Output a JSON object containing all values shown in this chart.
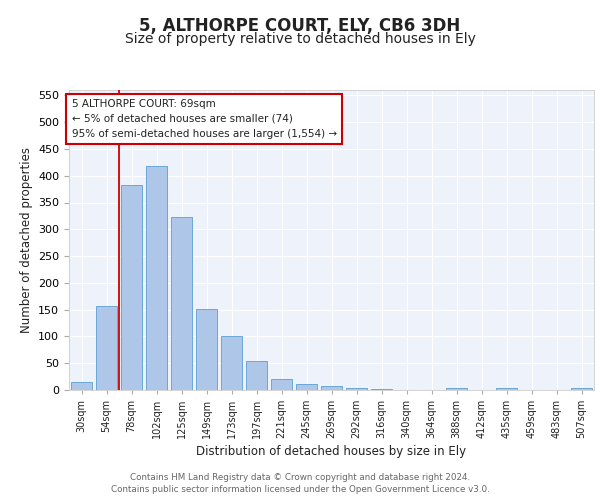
{
  "title": "5, ALTHORPE COURT, ELY, CB6 3DH",
  "subtitle": "Size of property relative to detached houses in Ely",
  "xlabel": "Distribution of detached houses by size in Ely",
  "ylabel": "Number of detached properties",
  "bar_labels": [
    "30sqm",
    "54sqm",
    "78sqm",
    "102sqm",
    "125sqm",
    "149sqm",
    "173sqm",
    "197sqm",
    "221sqm",
    "245sqm",
    "269sqm",
    "292sqm",
    "316sqm",
    "340sqm",
    "364sqm",
    "388sqm",
    "412sqm",
    "435sqm",
    "459sqm",
    "483sqm",
    "507sqm"
  ],
  "bar_values": [
    15,
    157,
    383,
    418,
    323,
    152,
    100,
    55,
    20,
    12,
    7,
    3,
    1,
    0,
    0,
    4,
    0,
    4,
    0,
    0,
    4
  ],
  "bar_color": "#aec6e8",
  "bar_edge_color": "#5a9fd4",
  "ylim": [
    0,
    560
  ],
  "yticks": [
    0,
    50,
    100,
    150,
    200,
    250,
    300,
    350,
    400,
    450,
    500,
    550
  ],
  "vline_x": 1.5,
  "vline_color": "#cc0000",
  "annotation_box_text": "5 ALTHORPE COURT: 69sqm\n← 5% of detached houses are smaller (74)\n95% of semi-detached houses are larger (1,554) →",
  "annotation_box_color": "#cc0000",
  "annotation_text_size": 7.5,
  "footer_line1": "Contains HM Land Registry data © Crown copyright and database right 2024.",
  "footer_line2": "Contains public sector information licensed under the Open Government Licence v3.0.",
  "background_color": "#eef2fb",
  "grid_color": "#ffffff",
  "title_fontsize": 12,
  "subtitle_fontsize": 10
}
